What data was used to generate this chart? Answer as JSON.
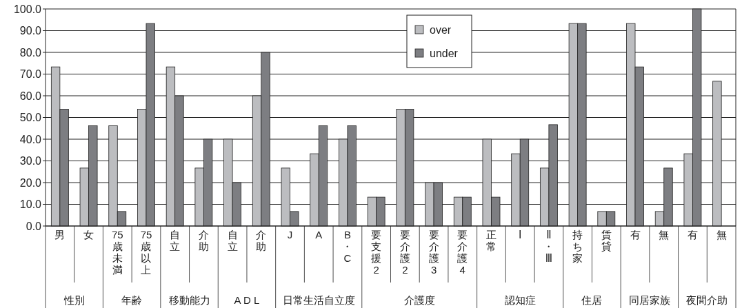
{
  "chart_data": {
    "type": "bar",
    "categories": [
      "男",
      "女",
      "75歳未満",
      "75歳以上",
      "自立",
      "介助",
      "自立",
      "介助",
      "J",
      "A",
      "B・C",
      "要支援2",
      "要介護2",
      "要介護3",
      "要介護4",
      "正常",
      "Ⅰ",
      "Ⅱ・Ⅲ",
      "持ち家",
      "賃貸",
      "有",
      "無",
      "有",
      "無"
    ],
    "series": [
      {
        "name": "over",
        "color": "#bcbdc0",
        "values": [
          73.3,
          26.7,
          46.2,
          53.8,
          73.3,
          26.7,
          40,
          60,
          26.7,
          33.3,
          40,
          13.3,
          53.8,
          20,
          13.3,
          40,
          33.3,
          26.7,
          93.3,
          6.7,
          93.3,
          6.7,
          33.3,
          66.7
        ]
      },
      {
        "name": "under",
        "color": "#7d7e82",
        "values": [
          53.8,
          46.2,
          6.7,
          93.3,
          60,
          40,
          20,
          80,
          6.7,
          46.2,
          46.2,
          13.3,
          53.8,
          20,
          13.3,
          13.3,
          40,
          46.7,
          93.3,
          6.7,
          73.3,
          26.7,
          100,
          null
        ]
      }
    ],
    "annotations": [
      "性別",
      "年齢",
      "移動能力",
      "A D L",
      "日常生活自立度",
      "介護度",
      "認知症",
      "住居",
      "同居家族",
      "夜間介助"
    ],
    "ylim": [
      0,
      100
    ],
    "yticks": [
      {
        "value": 0,
        "label": "0.0"
      },
      {
        "value": 10,
        "label": "10.0"
      },
      {
        "value": 20,
        "label": "20.0"
      },
      {
        "value": 30,
        "label": "30.0"
      },
      {
        "value": 40,
        "label": "40.0"
      },
      {
        "value": 50,
        "label": "50.0"
      },
      {
        "value": 60,
        "label": "60.0"
      },
      {
        "value": 70,
        "label": "70.0"
      },
      {
        "value": 80,
        "label": "80.0"
      },
      {
        "value": 90,
        "label": "90.0"
      },
      {
        "value": 100,
        "label": "100.0"
      }
    ],
    "grid": "y",
    "legend": "top"
  }
}
